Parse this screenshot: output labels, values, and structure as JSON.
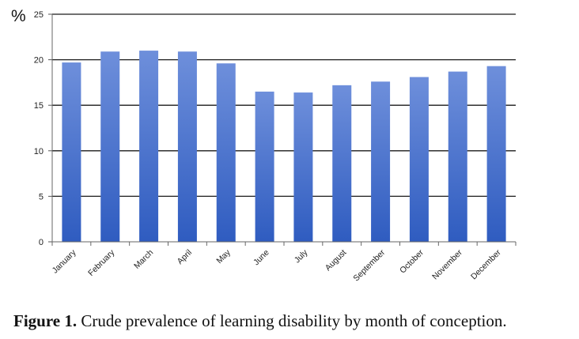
{
  "chart_data": {
    "type": "bar",
    "categories": [
      "January",
      "February",
      "March",
      "April",
      "May",
      "June",
      "July",
      "August",
      "September",
      "October",
      "November",
      "December"
    ],
    "values": [
      19.7,
      20.9,
      21.0,
      20.9,
      19.6,
      16.5,
      16.4,
      17.2,
      17.6,
      18.1,
      18.7,
      19.3
    ],
    "y_unit_label": "%",
    "ylim": [
      0,
      25
    ],
    "yticks": [
      0,
      5,
      10,
      15,
      20,
      25
    ],
    "grid": true,
    "legend": "none",
    "bar_color_top": "#6e8fdb",
    "bar_color_bottom": "#2f5cc0"
  },
  "caption": {
    "figure_label": "Figure 1.",
    "text": "Crude prevalence of learning disability by month of conception."
  }
}
